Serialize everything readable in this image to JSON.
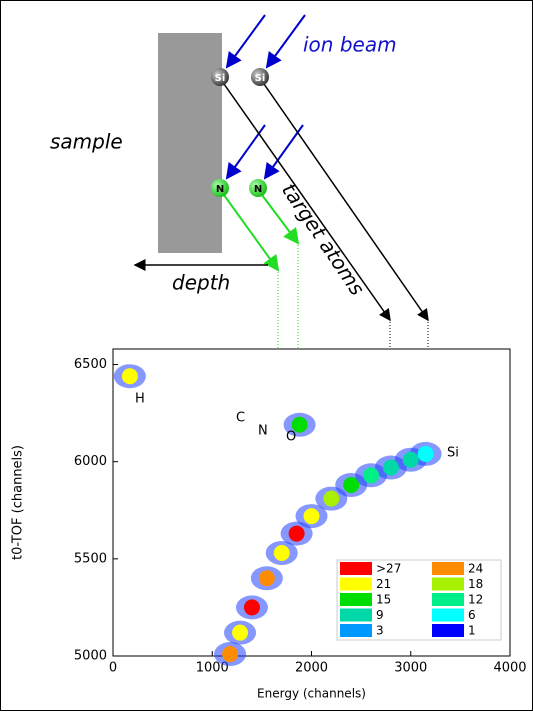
{
  "diagram": {
    "ion_beam": "ion beam",
    "sample": "sample",
    "target_atoms": "target atoms",
    "depth": "depth",
    "atoms": [
      "Si",
      "Si",
      "N",
      "N"
    ]
  },
  "chart_data": {
    "type": "scatter",
    "xlabel": "Energy (channels)",
    "ylabel": "t0-TOF (channels)",
    "xlim": [
      0,
      4000
    ],
    "xticks": [
      0,
      1000,
      2000,
      3000,
      4000
    ],
    "ylim": [
      5000,
      6580
    ],
    "yticks": [
      5000,
      5500,
      6000,
      6500
    ],
    "annotations": [
      "H",
      "C",
      "N",
      "O",
      "Si"
    ],
    "series": [
      {
        "x": [
          1180,
          1280,
          1400,
          1550,
          1700,
          1850,
          2000,
          2200,
          2400,
          2600,
          2800,
          3000,
          3150,
          1880,
          170
        ],
        "y": [
          5010,
          5120,
          5250,
          5400,
          5530,
          5630,
          5720,
          5810,
          5880,
          5930,
          5970,
          6010,
          6040,
          6190,
          6440
        ],
        "counts": [
          24,
          21,
          30,
          24,
          21,
          30,
          21,
          18,
          15,
          12,
          9,
          9,
          6,
          15,
          21
        ]
      }
    ],
    "color_scale": {
      "levels": [
        {
          "value": 27,
          "label": ">27"
        },
        24,
        21,
        18,
        15,
        12,
        9,
        6,
        3,
        1
      ],
      "colors": [
        "#ff0000",
        "#ff8c00",
        "#ffff00",
        "#a8f000",
        "#00dd00",
        "#00ee88",
        "#00d8a8",
        "#00ffff",
        "#0099ff",
        "#0000ff"
      ]
    }
  }
}
